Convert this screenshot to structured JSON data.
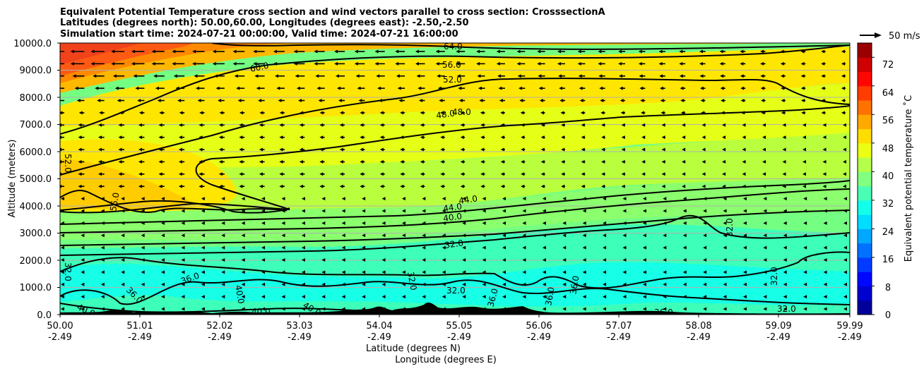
{
  "chart_data": {
    "type": "heatmap",
    "title_lines": [
      "Equivalent Potential Temperature cross section and wind vectors parallel to cross section: CrosssectionA",
      "Latitudes (degrees north): 50.00,60.00, Longitudes (degrees east): -2.50,-2.50",
      "Simulation start time: 2024-07-21 00:00:00, Valid time: 2024-07-21 16:00:00"
    ],
    "xlabel_lat": "Latitude (degrees N)",
    "xlabel_lon": "Longitude (degrees E)",
    "ylabel": "Altitude (meters)",
    "xlim": [
      50.0,
      59.99
    ],
    "ylim": [
      0,
      10000
    ],
    "x_ticks": [
      {
        "lat": "50.00",
        "lon": "-2.49"
      },
      {
        "lat": "51.01",
        "lon": "-2.49"
      },
      {
        "lat": "52.02",
        "lon": "-2.49"
      },
      {
        "lat": "53.03",
        "lon": "-2.49"
      },
      {
        "lat": "54.04",
        "lon": "-2.49"
      },
      {
        "lat": "55.05",
        "lon": "-2.49"
      },
      {
        "lat": "56.06",
        "lon": "-2.49"
      },
      {
        "lat": "57.07",
        "lon": "-2.49"
      },
      {
        "lat": "58.08",
        "lon": "-2.49"
      },
      {
        "lat": "59.09",
        "lon": "-2.49"
      },
      {
        "lat": "59.99",
        "lon": "-2.49"
      }
    ],
    "y_ticks": [
      "0.0",
      "1000.0",
      "2000.0",
      "3000.0",
      "4000.0",
      "5000.0",
      "6000.0",
      "7000.0",
      "8000.0",
      "9000.0",
      "10000.0"
    ],
    "y_tick_values": [
      0,
      1000,
      2000,
      3000,
      4000,
      5000,
      6000,
      7000,
      8000,
      9000,
      10000
    ],
    "colorbar": {
      "label": "Equivalent potential temperature ˚C",
      "range": [
        0,
        76
      ],
      "ticks": [
        "0",
        "8",
        "16",
        "24",
        "32",
        "40",
        "48",
        "56",
        "64",
        "72"
      ],
      "tick_values": [
        0,
        8,
        16,
        24,
        32,
        40,
        48,
        56,
        64,
        72
      ]
    },
    "quiver_key": "50 m/s",
    "contour_levels": [
      32,
      36,
      40,
      44,
      48,
      52,
      56,
      60,
      64
    ],
    "contour_label_texts": [
      "64.0",
      "60.0",
      "56.0",
      "52.0",
      "48.0",
      "48.0",
      "44.0",
      "44.0",
      "40.0",
      "32.0",
      "32.0",
      "32.0",
      "32.0",
      "32.0",
      "32.0",
      "32.0",
      "36.0",
      "36.0",
      "36.0",
      "36.0",
      "36.0",
      "36.0",
      "40.0",
      "40.0",
      "40.0",
      "40.0",
      "56.0",
      "52.0"
    ],
    "fields": [
      {
        "name": "equivalent potential temperature",
        "units": "˚C"
      },
      {
        "name": "wind vectors parallel to cross section",
        "units": "m/s"
      }
    ]
  },
  "colors": {
    "background": "#ffffff",
    "terrain": "#000000",
    "gridline": "#b0b0b0"
  }
}
